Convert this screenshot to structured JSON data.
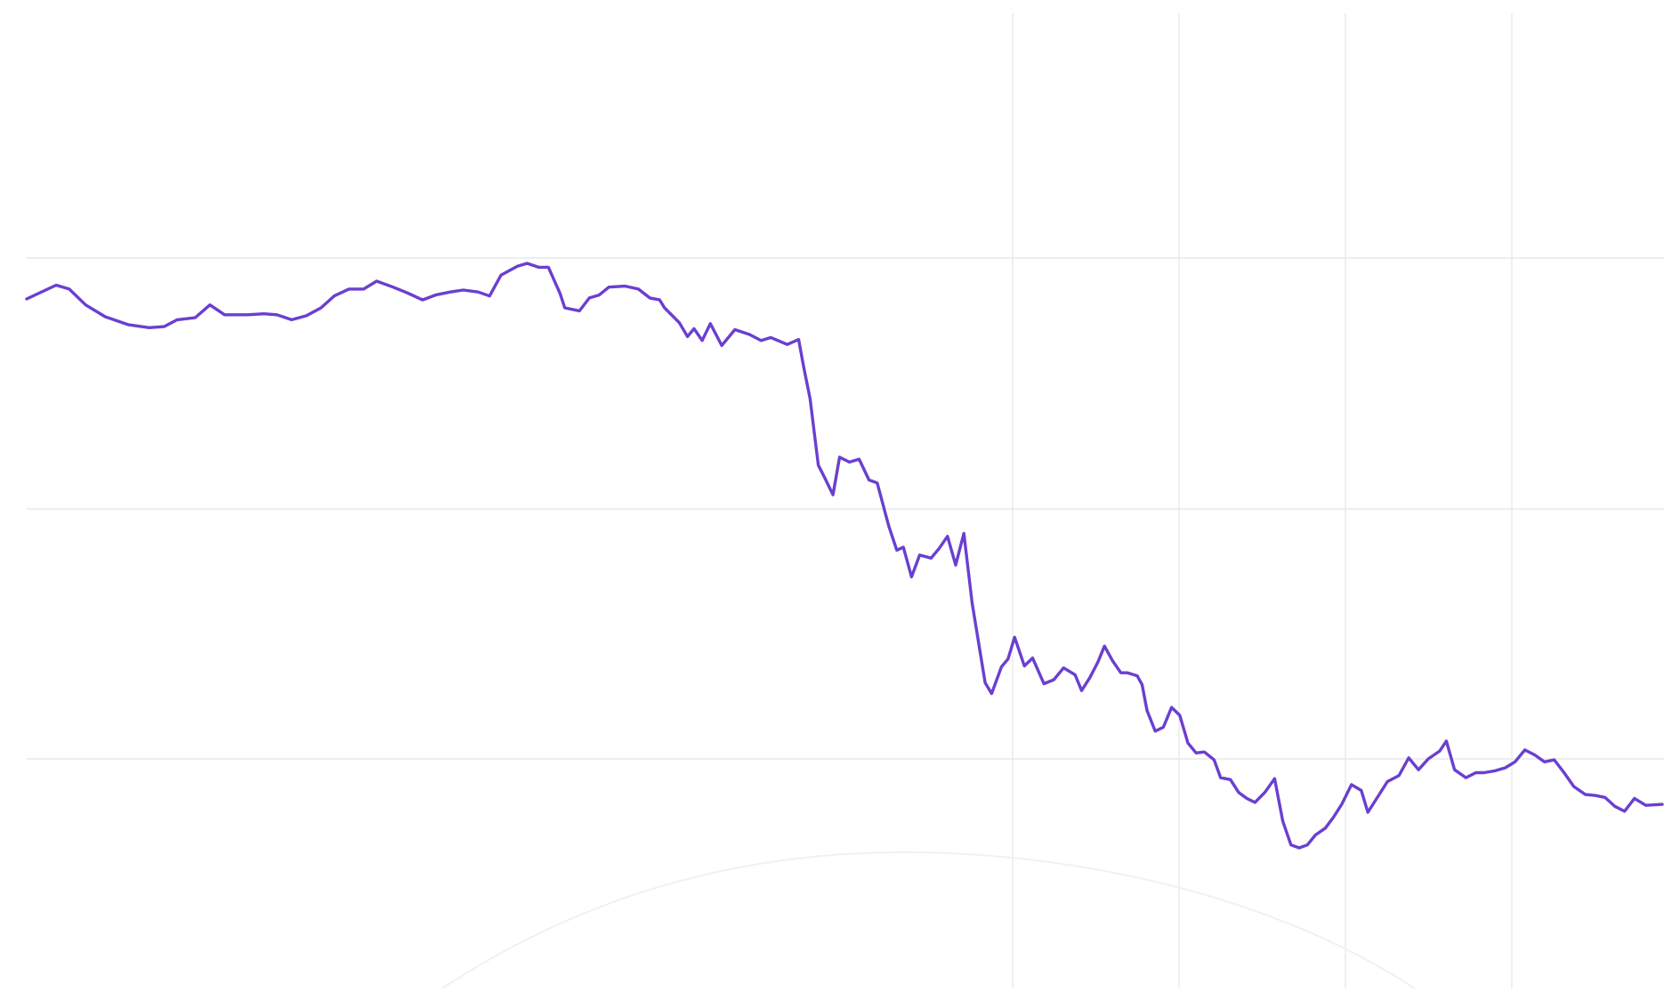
{
  "chart_data": {
    "type": "line",
    "title": "",
    "xlabel": "",
    "ylabel": "",
    "grid": true,
    "legend": "none",
    "xlim": [
      0,
      100
    ],
    "ylim": [
      0,
      100
    ],
    "series": [
      {
        "color": "#6a3fd0",
        "points": [
          [
            0,
            70
          ],
          [
            1.8,
            71.4
          ],
          [
            2.6,
            71
          ],
          [
            3.6,
            69.4
          ],
          [
            4.8,
            68.2
          ],
          [
            6.2,
            67.4
          ],
          [
            7.5,
            67.1
          ],
          [
            8.4,
            67.2
          ],
          [
            9.2,
            67.9
          ],
          [
            10.3,
            68.1
          ],
          [
            11.2,
            69.4
          ],
          [
            12.1,
            68.4
          ],
          [
            13.5,
            68.4
          ],
          [
            14.5,
            68.5
          ],
          [
            15.3,
            68.4
          ],
          [
            16.2,
            67.9
          ],
          [
            17.1,
            68.3
          ],
          [
            18,
            69.1
          ],
          [
            18.8,
            70.3
          ],
          [
            19.7,
            71
          ],
          [
            20.6,
            71
          ],
          [
            21.4,
            71.8
          ],
          [
            22.4,
            71.2
          ],
          [
            23.3,
            70.6
          ],
          [
            24.2,
            69.9
          ],
          [
            25,
            70.4
          ],
          [
            25.9,
            70.7
          ],
          [
            26.7,
            70.9
          ],
          [
            27.6,
            70.7
          ],
          [
            28.3,
            70.3
          ],
          [
            29,
            72.4
          ],
          [
            30,
            73.3
          ],
          [
            30.6,
            73.6
          ],
          [
            31.3,
            73.2
          ],
          [
            31.9,
            73.2
          ],
          [
            32.6,
            70.6
          ],
          [
            32.9,
            69.1
          ],
          [
            33.8,
            68.8
          ],
          [
            34.4,
            70.1
          ],
          [
            35,
            70.4
          ],
          [
            35.6,
            71.2
          ],
          [
            36.6,
            71.3
          ],
          [
            37.4,
            71
          ],
          [
            38.1,
            70.1
          ],
          [
            38.7,
            69.9
          ],
          [
            39,
            69.1
          ],
          [
            39.9,
            67.6
          ],
          [
            40.4,
            66.2
          ],
          [
            40.8,
            67
          ],
          [
            41.3,
            65.8
          ],
          [
            41.8,
            67.5
          ],
          [
            42.5,
            65.3
          ],
          [
            43.3,
            66.9
          ],
          [
            44.2,
            66.4
          ],
          [
            44.9,
            65.8
          ],
          [
            45.5,
            66.1
          ],
          [
            46.5,
            65.4
          ],
          [
            47.2,
            65.9
          ],
          [
            47.5,
            63.2
          ],
          [
            47.9,
            59.9
          ],
          [
            48.4,
            53.2
          ],
          [
            48.8,
            51.9
          ],
          [
            49.3,
            50.2
          ],
          [
            49.7,
            54
          ],
          [
            50.3,
            53.5
          ],
          [
            50.9,
            53.8
          ],
          [
            51.5,
            51.7
          ],
          [
            52,
            51.4
          ],
          [
            52.7,
            47.1
          ],
          [
            53.2,
            44.6
          ],
          [
            53.6,
            44.9
          ],
          [
            54.1,
            41.9
          ],
          [
            54.6,
            44.1
          ],
          [
            55.3,
            43.8
          ],
          [
            55.8,
            44.8
          ],
          [
            56.3,
            46
          ],
          [
            56.8,
            43.1
          ],
          [
            57.3,
            46.3
          ],
          [
            57.8,
            39.3
          ],
          [
            58.6,
            31.2
          ],
          [
            59,
            30.1
          ],
          [
            59.6,
            32.8
          ],
          [
            60,
            33.6
          ],
          [
            60.4,
            35.8
          ],
          [
            61,
            32.9
          ],
          [
            61.5,
            33.7
          ],
          [
            62.2,
            31.1
          ],
          [
            62.8,
            31.5
          ],
          [
            63.4,
            32.7
          ],
          [
            64.1,
            32
          ],
          [
            64.5,
            30.4
          ],
          [
            65,
            31.7
          ],
          [
            65.5,
            33.3
          ],
          [
            65.9,
            34.9
          ],
          [
            66.4,
            33.4
          ],
          [
            66.9,
            32.2
          ],
          [
            67.3,
            32.2
          ],
          [
            67.9,
            31.9
          ],
          [
            68.2,
            31
          ],
          [
            68.5,
            28.4
          ],
          [
            69,
            26.3
          ],
          [
            69.5,
            26.7
          ],
          [
            70,
            28.7
          ],
          [
            70.5,
            27.9
          ],
          [
            71,
            25.1
          ],
          [
            71.5,
            24.1
          ],
          [
            72,
            24.2
          ],
          [
            72.6,
            23.4
          ],
          [
            73,
            21.6
          ],
          [
            73.6,
            21.4
          ],
          [
            74.1,
            20.1
          ],
          [
            74.6,
            19.5
          ],
          [
            75.1,
            19.1
          ],
          [
            75.7,
            20.1
          ],
          [
            76.3,
            21.5
          ],
          [
            76.8,
            17.2
          ],
          [
            77.3,
            14.8
          ],
          [
            77.8,
            14.5
          ],
          [
            78.3,
            14.8
          ],
          [
            78.8,
            15.8
          ],
          [
            79.4,
            16.5
          ],
          [
            79.9,
            17.6
          ],
          [
            80.4,
            18.9
          ],
          [
            81,
            20.9
          ],
          [
            81.6,
            20.3
          ],
          [
            82,
            18.1
          ],
          [
            82.7,
            19.9
          ],
          [
            83.2,
            21.2
          ],
          [
            83.9,
            21.8
          ],
          [
            84.5,
            23.6
          ],
          [
            85.1,
            22.4
          ],
          [
            85.7,
            23.5
          ],
          [
            86.4,
            24.3
          ],
          [
            86.8,
            25.3
          ],
          [
            87.3,
            22.4
          ],
          [
            88,
            21.6
          ],
          [
            88.6,
            22.1
          ],
          [
            89.1,
            22.1
          ],
          [
            89.8,
            22.3
          ],
          [
            90.4,
            22.6
          ],
          [
            91,
            23.2
          ],
          [
            91.6,
            24.4
          ],
          [
            92.2,
            23.9
          ],
          [
            92.8,
            23.2
          ],
          [
            93.4,
            23.4
          ],
          [
            94,
            22.1
          ],
          [
            94.6,
            20.7
          ],
          [
            95.3,
            19.9
          ],
          [
            95.9,
            19.8
          ],
          [
            96.5,
            19.6
          ],
          [
            97.1,
            18.7
          ],
          [
            97.7,
            18.2
          ],
          [
            98.3,
            19.5
          ],
          [
            99,
            18.8
          ],
          [
            100,
            18.9
          ]
        ]
      }
    ]
  }
}
